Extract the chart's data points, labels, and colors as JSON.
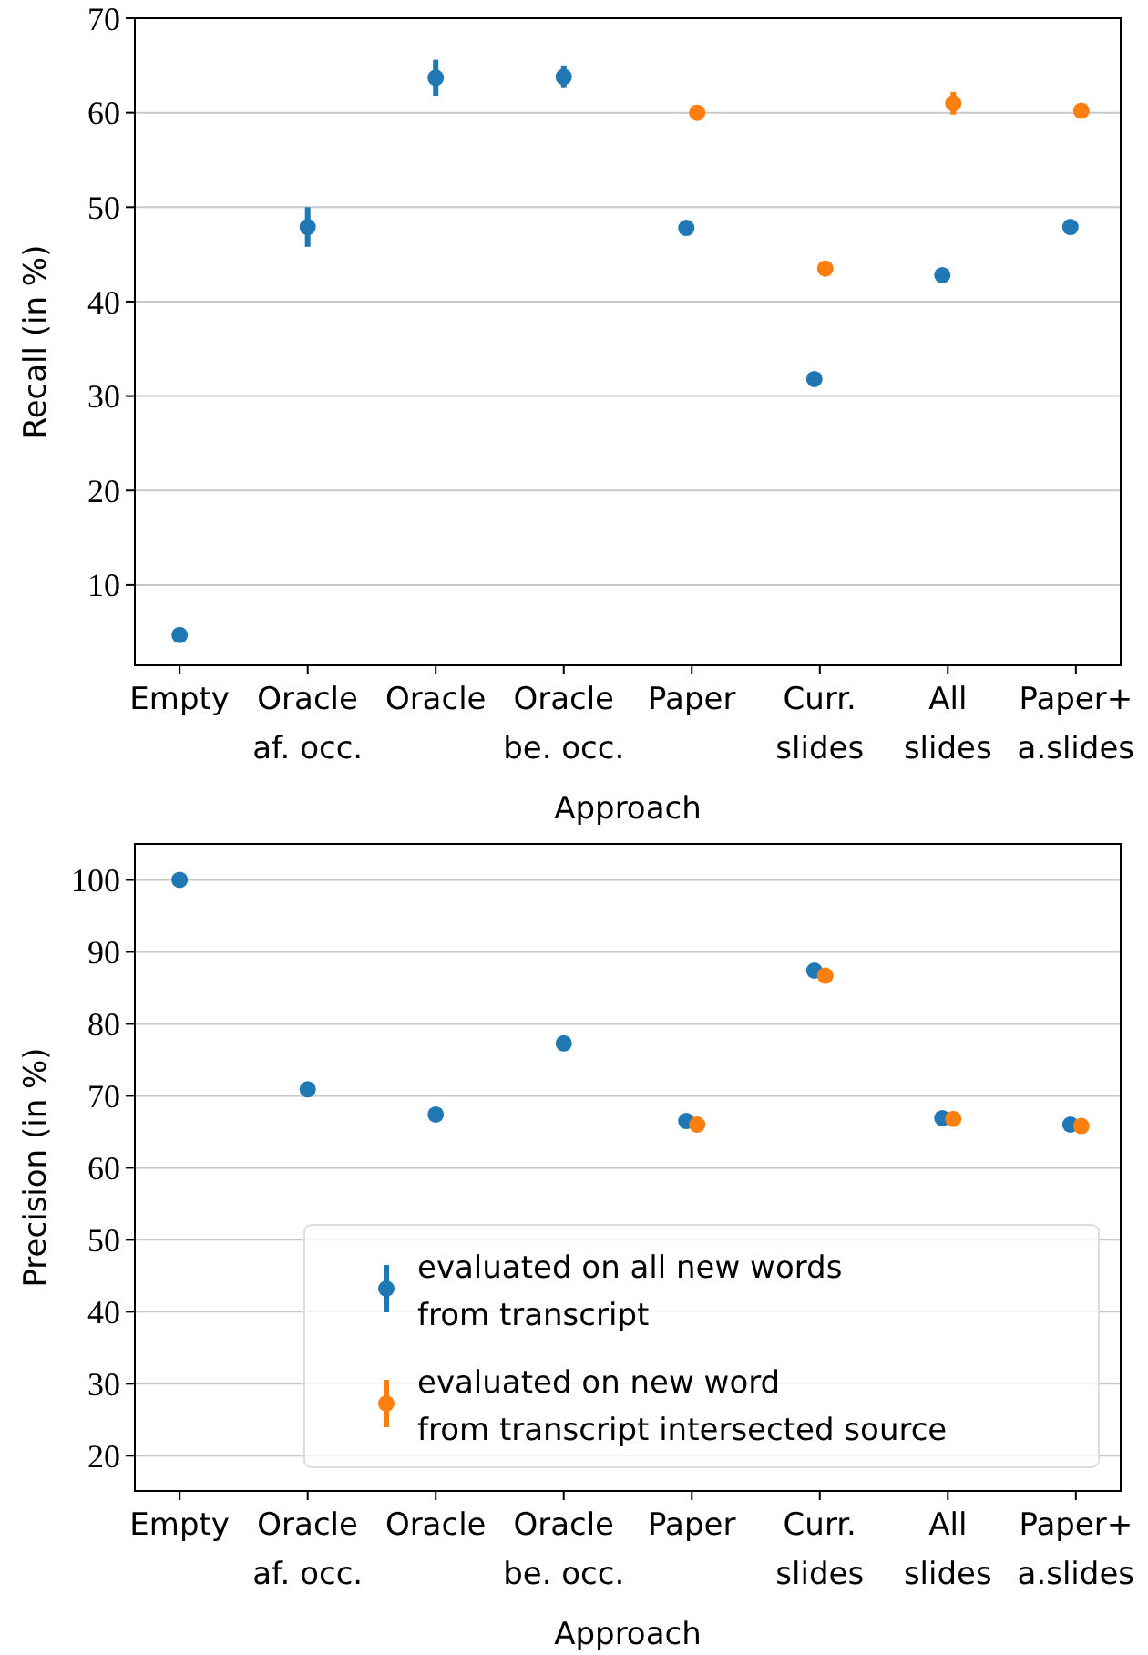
{
  "chart_data": [
    {
      "type": "scatter",
      "xlabel": "Approach",
      "ylabel": "Recall (in %)",
      "categories": [
        "Empty",
        "Oracle\naf. occ.",
        "Oracle",
        "Oracle\nbe. occ.",
        "Paper",
        "Curr.\nslides",
        "All\nslides",
        "Paper+\na.slides"
      ],
      "ylim": [
        1.5,
        70
      ],
      "yticks": [
        10,
        20,
        30,
        40,
        50,
        60,
        70
      ],
      "grid": "y",
      "marker": "circle",
      "legend": false,
      "series": [
        {
          "color": "#1f77b4",
          "values": [
            4.7,
            47.9,
            63.7,
            63.8,
            47.8,
            31.8,
            42.8,
            47.9
          ],
          "errors": [
            null,
            2.1,
            1.9,
            1.2,
            null,
            null,
            null,
            null
          ]
        },
        {
          "color": "#ff7f0e",
          "values": [
            null,
            null,
            null,
            null,
            60.0,
            43.5,
            61.0,
            60.2
          ],
          "errors": [
            null,
            null,
            null,
            null,
            null,
            null,
            1.2,
            0.7
          ]
        }
      ]
    },
    {
      "type": "scatter",
      "xlabel": "Approach",
      "ylabel": "Precision (in %)",
      "categories": [
        "Empty",
        "Oracle\naf. occ.",
        "Oracle",
        "Oracle\nbe. occ.",
        "Paper",
        "Curr.\nslides",
        "All\nslides",
        "Paper+\na.slides"
      ],
      "ylim": [
        15.1,
        105
      ],
      "yticks": [
        20,
        30,
        40,
        50,
        60,
        70,
        80,
        90,
        100
      ],
      "grid": "y",
      "marker": "circle",
      "legend": "bottom right",
      "series": [
        {
          "name": "evaluated on all new words\nfrom transcript",
          "color": "#1f77b4",
          "values": [
            100,
            70.9,
            67.4,
            77.3,
            66.5,
            87.4,
            66.9,
            66.0
          ]
        },
        {
          "name": "evaluated on new word\nfrom transcript intersected source",
          "color": "#ff7f0e",
          "values": [
            null,
            null,
            null,
            null,
            66.0,
            86.7,
            66.8,
            65.8
          ]
        }
      ]
    }
  ]
}
